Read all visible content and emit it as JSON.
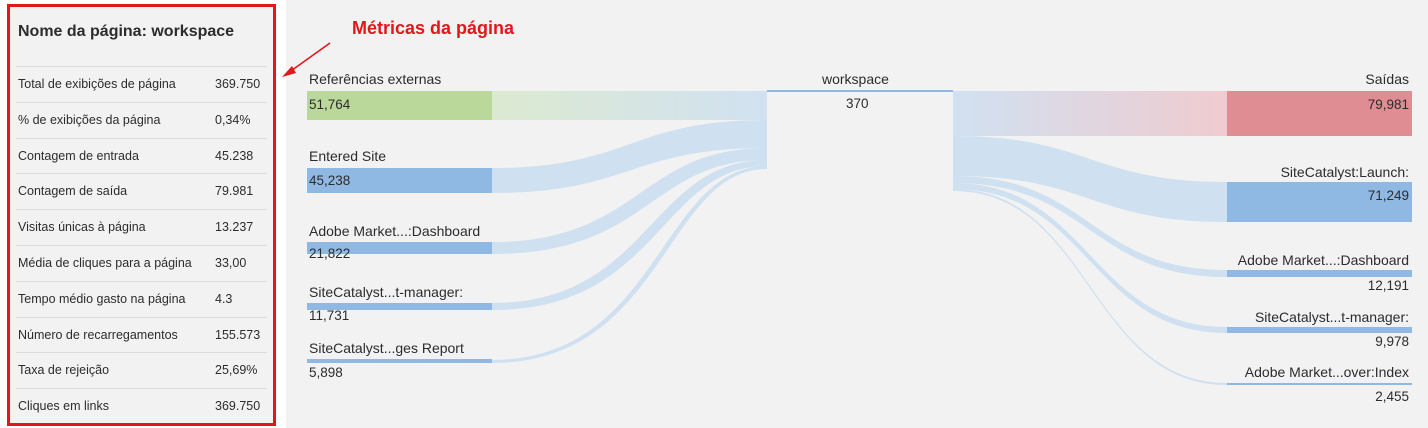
{
  "panel": {
    "title": "Nome da página: workspace",
    "metrics": [
      {
        "label": "Total de exibições de página",
        "value": "369.750"
      },
      {
        "label": "% de exibições da página",
        "value": "0,34%"
      },
      {
        "label": "Contagem de entrada",
        "value": "45.238"
      },
      {
        "label": "Contagem de saída",
        "value": "79.981"
      },
      {
        "label": "Visitas únicas à página",
        "value": "13.237"
      },
      {
        "label": "Média de cliques para a página",
        "value": "33,00"
      },
      {
        "label": "Tempo médio gasto na página",
        "value": "4.3"
      },
      {
        "label": "Número de recarregamentos",
        "value": "155.573"
      },
      {
        "label": "Taxa de rejeição",
        "value": "25,69%"
      },
      {
        "label": "Cliques em links",
        "value": "369.750"
      }
    ]
  },
  "annotation": {
    "text": "Métricas da página"
  },
  "flow": {
    "center": {
      "label": "workspace",
      "value": "370"
    },
    "incoming": [
      {
        "label": "Referências externas",
        "value": "51,764"
      },
      {
        "label": "Entered Site",
        "value": "45,238"
      },
      {
        "label": "Adobe Market...:Dashboard",
        "value": "21,822"
      },
      {
        "label": "SiteCatalyst...t-manager:",
        "value": "11,731"
      },
      {
        "label": "SiteCatalyst...ges Report",
        "value": "5,898"
      }
    ],
    "outgoing": [
      {
        "label": "Saídas",
        "value": "79,981"
      },
      {
        "label": "SiteCatalyst:Launch:",
        "value": "71,249"
      },
      {
        "label": "Adobe Market...:Dashboard",
        "value": "12,191"
      },
      {
        "label": "SiteCatalyst...t-manager:",
        "value": "9,978"
      },
      {
        "label": "Adobe Market...over:Index",
        "value": "2,455"
      }
    ],
    "colors": {
      "entry": "#b9d89a",
      "node": "#8fb9e3",
      "exit": "#e08c93",
      "ribbon": "#cfe0f1",
      "panel_border": "#e3161b"
    }
  }
}
